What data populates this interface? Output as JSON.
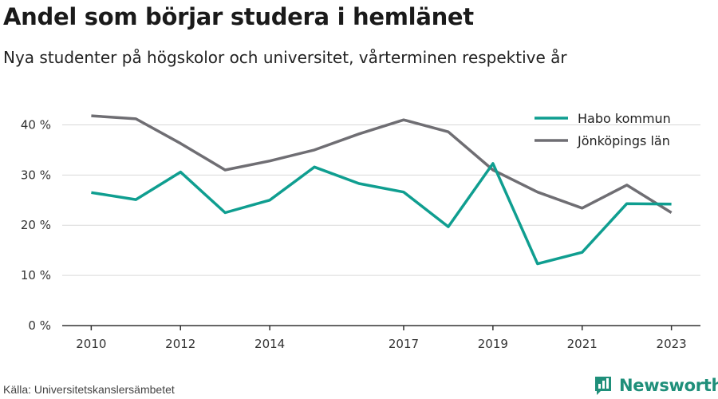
{
  "title": "Andel som börjar studera i hemlänet",
  "subtitle": "Nya studenter på högskolor och universitet, vårterminen respektive år",
  "source": "Källa: Universitetskanslersämbetet",
  "brand": {
    "name": "Newsworthy",
    "icon": "bar-chart-speech-bubble-icon",
    "color": "#1f8f7a"
  },
  "chart_data": {
    "type": "line",
    "title": "Andel som börjar studera i hemlänet",
    "subtitle": "Nya studenter på högskolor och universitet, vårterminen respektive år",
    "xlabel": "",
    "ylabel": "",
    "x": [
      2010,
      2011,
      2012,
      2013,
      2014,
      2015,
      2016,
      2017,
      2018,
      2019,
      2020,
      2021,
      2022,
      2023
    ],
    "xticks": [
      2010,
      2012,
      2014,
      2017,
      2019,
      2021,
      2023
    ],
    "xlim": [
      2009.35,
      2023.65
    ],
    "yticks": [
      0,
      10,
      20,
      30,
      40
    ],
    "ytick_labels": [
      "0 %",
      "10 %",
      "20 %",
      "30 %",
      "40 %"
    ],
    "ylim": [
      0,
      45
    ],
    "grid": "horizontal",
    "legend": "top-right",
    "series": [
      {
        "name": "Habo kommun",
        "color": "#0f9e90",
        "values": [
          26.5,
          25.1,
          30.6,
          22.5,
          25.0,
          31.6,
          28.3,
          26.6,
          19.7,
          32.3,
          12.3,
          14.6,
          24.3,
          24.2
        ]
      },
      {
        "name": "Jönköpings län",
        "color": "#6f6e73",
        "values": [
          41.8,
          41.2,
          36.3,
          31.0,
          32.8,
          35.0,
          38.2,
          41.0,
          38.6,
          31.0,
          26.6,
          23.4,
          28.0,
          22.5
        ]
      }
    ]
  }
}
